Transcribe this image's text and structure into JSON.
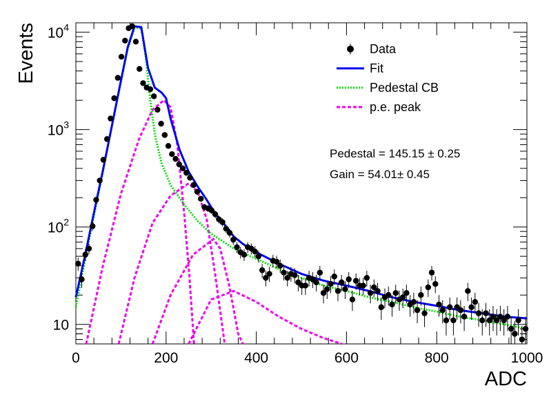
{
  "chart_data": {
    "type": "scatter",
    "title": "",
    "xlabel": "ADC",
    "ylabel": "Events",
    "xlim": [
      0,
      1000
    ],
    "ylim": [
      6.3,
      12500
    ],
    "yscale": "log",
    "x_ticks": [
      0,
      200,
      400,
      600,
      800,
      1000
    ],
    "y_ticks": [
      {
        "value": 10,
        "base": "10",
        "exp": ""
      },
      {
        "value": 100,
        "base": "10",
        "exp": "2"
      },
      {
        "value": 1000,
        "base": "10",
        "exp": "3"
      },
      {
        "value": 10000,
        "base": "10",
        "exp": "4"
      }
    ],
    "legend_position": "top-right",
    "legend": [
      {
        "label": "Data",
        "style": "marker",
        "color": "#000000"
      },
      {
        "label": "Fit",
        "style": "solid",
        "color": "#0000ee"
      },
      {
        "label": "Pedestal CB",
        "style": "dotted",
        "color": "#00dd00"
      },
      {
        "label": "p.e. peak",
        "style": "dashed",
        "color": "#ee00ee"
      }
    ],
    "annotations": [
      "Pedestal = 145.15 ± 0.25",
      "Gain = 54.01± 0.45"
    ],
    "data_points": [
      [
        5,
        42
      ],
      [
        13,
        29
      ],
      [
        21,
        52
      ],
      [
        29,
        60
      ],
      [
        37,
        102
      ],
      [
        45,
        190
      ],
      [
        53,
        300
      ],
      [
        61,
        490
      ],
      [
        69,
        800
      ],
      [
        77,
        1300
      ],
      [
        85,
        2100
      ],
      [
        93,
        3400
      ],
      [
        101,
        5600
      ],
      [
        109,
        8200
      ],
      [
        117,
        11000
      ],
      [
        125,
        11500
      ],
      [
        133,
        8000
      ],
      [
        141,
        4200
      ],
      [
        149,
        3000
      ],
      [
        157,
        2700
      ],
      [
        165,
        2600
      ],
      [
        173,
        2200
      ],
      [
        181,
        1600
      ],
      [
        189,
        1150
      ],
      [
        197,
        880
      ],
      [
        205,
        680
      ],
      [
        213,
        560
      ],
      [
        221,
        500
      ],
      [
        229,
        440
      ],
      [
        237,
        400
      ],
      [
        245,
        360
      ],
      [
        253,
        320
      ],
      [
        261,
        270
      ],
      [
        269,
        230
      ],
      [
        277,
        195
      ],
      [
        285,
        160
      ],
      [
        293,
        155
      ],
      [
        301,
        148
      ],
      [
        309,
        135
      ],
      [
        317,
        120
      ],
      [
        325,
        112
      ],
      [
        333,
        96
      ],
      [
        341,
        87
      ],
      [
        349,
        74
      ],
      [
        357,
        62
      ],
      [
        365,
        55
      ],
      [
        373,
        52
      ],
      [
        381,
        62
      ],
      [
        389,
        60
      ],
      [
        397,
        56
      ],
      [
        405,
        50
      ],
      [
        413,
        36
      ],
      [
        421,
        30
      ],
      [
        429,
        33
      ],
      [
        437,
        45
      ],
      [
        445,
        44
      ],
      [
        453,
        40
      ],
      [
        461,
        34
      ],
      [
        469,
        30
      ],
      [
        477,
        33
      ],
      [
        485,
        32
      ],
      [
        493,
        27
      ],
      [
        501,
        25
      ],
      [
        509,
        25
      ],
      [
        517,
        30
      ],
      [
        525,
        29
      ],
      [
        533,
        27
      ],
      [
        541,
        34
      ],
      [
        549,
        21
      ],
      [
        557,
        23
      ],
      [
        565,
        26
      ],
      [
        573,
        31
      ],
      [
        581,
        22
      ],
      [
        589,
        27
      ],
      [
        597,
        23
      ],
      [
        605,
        29
      ],
      [
        613,
        18
      ],
      [
        621,
        28
      ],
      [
        629,
        25
      ],
      [
        637,
        25
      ],
      [
        645,
        30
      ],
      [
        653,
        21
      ],
      [
        661,
        24
      ],
      [
        669,
        22
      ],
      [
        677,
        15
      ],
      [
        685,
        19
      ],
      [
        693,
        20
      ],
      [
        701,
        16
      ],
      [
        709,
        21
      ],
      [
        717,
        18
      ],
      [
        725,
        19
      ],
      [
        733,
        21
      ],
      [
        741,
        16
      ],
      [
        749,
        17
      ],
      [
        757,
        14
      ],
      [
        765,
        20
      ],
      [
        773,
        13
      ],
      [
        781,
        24
      ],
      [
        789,
        34
      ],
      [
        797,
        26
      ],
      [
        805,
        16
      ],
      [
        813,
        14
      ],
      [
        821,
        11
      ],
      [
        829,
        15
      ],
      [
        837,
        11
      ],
      [
        845,
        15
      ],
      [
        853,
        14
      ],
      [
        861,
        12
      ],
      [
        869,
        22
      ],
      [
        877,
        15
      ],
      [
        885,
        17
      ],
      [
        893,
        13
      ],
      [
        901,
        11
      ],
      [
        909,
        13
      ],
      [
        917,
        11
      ],
      [
        925,
        12
      ],
      [
        933,
        11
      ],
      [
        941,
        12
      ],
      [
        949,
        11
      ],
      [
        957,
        12
      ],
      [
        965,
        9
      ],
      [
        973,
        8
      ],
      [
        981,
        11
      ],
      [
        989,
        7
      ],
      [
        997,
        9
      ]
    ],
    "curves": {
      "fit": [
        [
          0,
          19
        ],
        [
          20,
          50
        ],
        [
          40,
          140
        ],
        [
          60,
          380
        ],
        [
          80,
          1100
        ],
        [
          100,
          3200
        ],
        [
          115,
          7000
        ],
        [
          130,
          11500
        ],
        [
          145,
          11300
        ],
        [
          160,
          4300
        ],
        [
          175,
          2700
        ],
        [
          190,
          2400
        ],
        [
          200,
          2100
        ],
        [
          210,
          1300
        ],
        [
          230,
          620
        ],
        [
          250,
          370
        ],
        [
          270,
          260
        ],
        [
          290,
          190
        ],
        [
          310,
          135
        ],
        [
          330,
          105
        ],
        [
          350,
          80
        ],
        [
          370,
          67
        ],
        [
          400,
          55
        ],
        [
          450,
          42
        ],
        [
          500,
          33
        ],
        [
          550,
          28
        ],
        [
          600,
          25
        ],
        [
          650,
          22
        ],
        [
          700,
          19
        ],
        [
          750,
          17
        ],
        [
          800,
          15.5
        ],
        [
          850,
          14
        ],
        [
          900,
          13
        ],
        [
          950,
          12
        ],
        [
          1000,
          11.5
        ]
      ],
      "pedestal": [
        [
          0,
          15
        ],
        [
          20,
          45
        ],
        [
          40,
          130
        ],
        [
          60,
          370
        ],
        [
          80,
          1100
        ],
        [
          100,
          3100
        ],
        [
          115,
          6800
        ],
        [
          130,
          11000
        ],
        [
          145,
          11000
        ],
        [
          155,
          5500
        ],
        [
          165,
          2000
        ],
        [
          175,
          900
        ],
        [
          190,
          450
        ],
        [
          210,
          270
        ],
        [
          240,
          170
        ],
        [
          270,
          115
        ],
        [
          300,
          85
        ],
        [
          350,
          60
        ],
        [
          400,
          47
        ],
        [
          450,
          37
        ],
        [
          500,
          30
        ],
        [
          550,
          25
        ],
        [
          600,
          22
        ],
        [
          650,
          19
        ],
        [
          700,
          17
        ],
        [
          750,
          15
        ],
        [
          800,
          13.5
        ],
        [
          850,
          12
        ],
        [
          900,
          11
        ],
        [
          950,
          10
        ],
        [
          1000,
          9
        ]
      ],
      "pe_peaks": [
        [
          [
            23,
            6.3
          ],
          [
            60,
            40
          ],
          [
            100,
            220
          ],
          [
            140,
            800
          ],
          [
            170,
            1600
          ],
          [
            195,
            2000
          ],
          [
            210,
            1700
          ],
          [
            225,
            700
          ],
          [
            240,
            140
          ],
          [
            252,
            30
          ],
          [
            262,
            6.3
          ]
        ],
        [
          [
            95,
            6.3
          ],
          [
            130,
            30
          ],
          [
            170,
            110
          ],
          [
            210,
            210
          ],
          [
            250,
            280
          ],
          [
            270,
            230
          ],
          [
            290,
            120
          ],
          [
            310,
            30
          ],
          [
            330,
            6.3
          ]
        ],
        [
          [
            170,
            6.3
          ],
          [
            210,
            20
          ],
          [
            260,
            52
          ],
          [
            305,
            75
          ],
          [
            320,
            60
          ],
          [
            340,
            25
          ],
          [
            360,
            8
          ],
          [
            370,
            6.3
          ]
        ],
        [
          [
            250,
            6.3
          ],
          [
            300,
            18
          ],
          [
            350,
            22
          ],
          [
            400,
            17
          ],
          [
            450,
            12
          ],
          [
            500,
            9
          ],
          [
            550,
            7.2
          ],
          [
            590,
            6.3
          ]
        ]
      ]
    }
  }
}
